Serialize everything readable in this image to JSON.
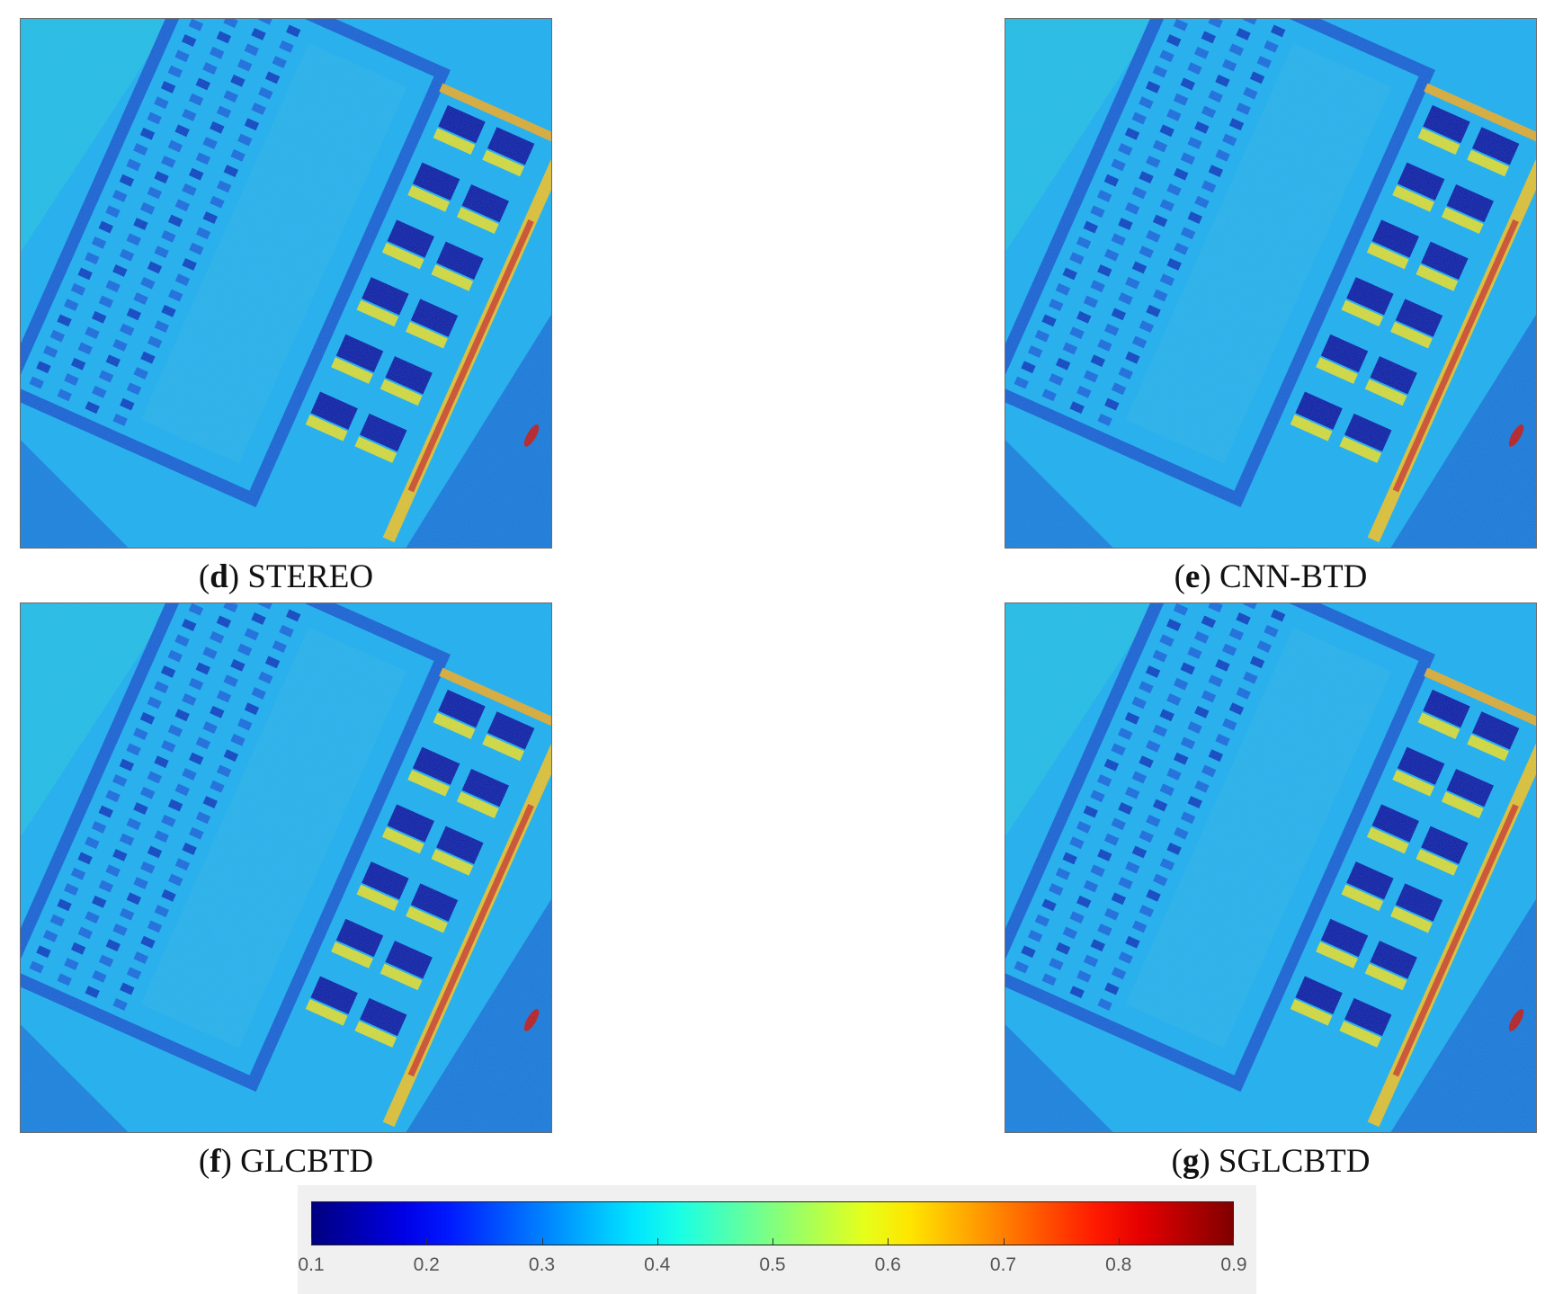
{
  "figure": {
    "panels": [
      {
        "id": "d",
        "letter": "d",
        "method": "STEREO"
      },
      {
        "id": "e",
        "letter": "e",
        "method": "CNN-BTD"
      },
      {
        "id": "f",
        "letter": "f",
        "method": "GLCBTD"
      },
      {
        "id": "g",
        "letter": "g",
        "method": "SGLCBTD"
      }
    ],
    "colorbar": {
      "colormap": "jet",
      "min": 0.1,
      "max": 0.9,
      "ticks": [
        "0.1",
        "0.2",
        "0.3",
        "0.4",
        "0.5",
        "0.6",
        "0.7",
        "0.8",
        "0.9"
      ]
    },
    "colors": {
      "background": "#21b7ee",
      "low": "#0a1a9e",
      "high": "#d21c0c"
    }
  }
}
